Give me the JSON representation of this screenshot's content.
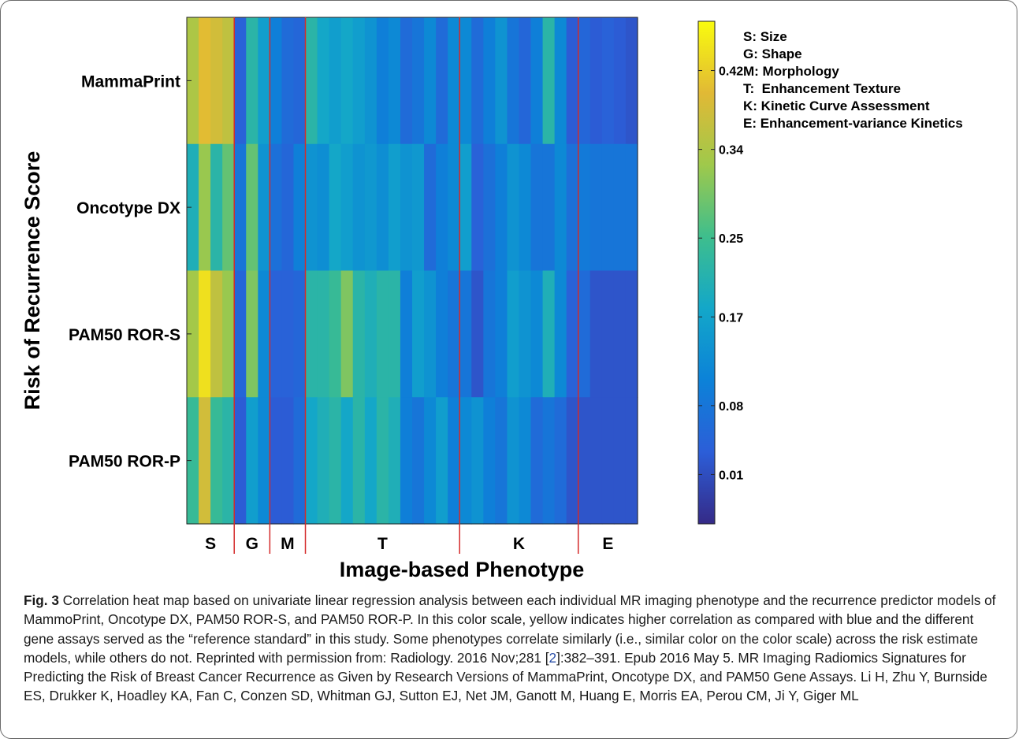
{
  "chart_data": {
    "type": "heatmap",
    "xlabel": "Image-based Phenotype",
    "ylabel": "Risk of Recurrence Score",
    "rows": [
      "MammaPrint",
      "Oncotype DX",
      "PAM50 ROR-S",
      "PAM50 ROR-P"
    ],
    "groups": [
      {
        "label": "S",
        "n": 4
      },
      {
        "label": "G",
        "n": 3
      },
      {
        "label": "M",
        "n": 3
      },
      {
        "label": "T",
        "n": 13
      },
      {
        "label": "K",
        "n": 10
      },
      {
        "label": "E",
        "n": 5
      }
    ],
    "values": [
      [
        0.34,
        0.4,
        0.38,
        0.36,
        0.04,
        0.22,
        0.16,
        0.1,
        0.06,
        0.05,
        0.22,
        0.18,
        0.16,
        0.18,
        0.16,
        0.14,
        0.1,
        0.12,
        0.06,
        0.08,
        0.12,
        0.06,
        0.12,
        0.12,
        0.06,
        0.1,
        0.14,
        0.08,
        0.05,
        0.1,
        0.22,
        0.12,
        0.03,
        0.05,
        0.03,
        0.04,
        0.03,
        0.02
      ],
      [
        0.2,
        0.32,
        0.22,
        0.28,
        0.08,
        0.28,
        0.14,
        0.07,
        0.05,
        0.1,
        0.14,
        0.13,
        0.18,
        0.16,
        0.14,
        0.15,
        0.13,
        0.16,
        0.14,
        0.15,
        0.06,
        0.1,
        0.12,
        0.16,
        0.04,
        0.07,
        0.1,
        0.14,
        0.12,
        0.08,
        0.08,
        0.12,
        0.07,
        0.09,
        0.08,
        0.08,
        0.08,
        0.08
      ],
      [
        0.33,
        0.44,
        0.36,
        0.32,
        0.05,
        0.3,
        0.12,
        0.04,
        0.04,
        0.05,
        0.22,
        0.22,
        0.24,
        0.3,
        0.22,
        0.2,
        0.22,
        0.22,
        0.1,
        0.16,
        0.14,
        0.1,
        0.08,
        0.08,
        0.02,
        0.08,
        0.1,
        0.16,
        0.14,
        0.12,
        0.2,
        0.12,
        0.04,
        0.06,
        0.02,
        0.02,
        0.02,
        0.02
      ],
      [
        0.24,
        0.38,
        0.24,
        0.22,
        0.03,
        0.16,
        0.12,
        0.03,
        0.03,
        0.06,
        0.18,
        0.2,
        0.22,
        0.18,
        0.22,
        0.18,
        0.22,
        0.2,
        0.1,
        0.08,
        0.12,
        0.16,
        0.1,
        0.12,
        0.14,
        0.1,
        0.08,
        0.14,
        0.12,
        0.06,
        0.08,
        0.06,
        0.02,
        0.02,
        0.02,
        0.02,
        0.02,
        0.02
      ]
    ],
    "colorbar_ticks": [
      0.01,
      0.08,
      0.17,
      0.25,
      0.34,
      0.42
    ],
    "colorbar_range": [
      -0.04,
      0.47
    ],
    "colormap": "parula",
    "colormap_stops": [
      "#352a87",
      "#2c5ed8",
      "#0c82d8",
      "#13a7c9",
      "#3ebe8d",
      "#9fc94b",
      "#e1b935",
      "#f9fb0e"
    ],
    "divider_color": "#d42a2a",
    "legend": [
      "S: Size",
      "G: Shape",
      "M: Morphology",
      "T:  Enhancement Texture",
      "K: Kinetic Curve Assessment",
      "E: Enhancement-variance Kinetics"
    ]
  },
  "caption": {
    "label": "Fig. 3",
    "text1": " Correlation heat map based on univariate linear regression analysis between each individual MR imaging phenotype and the recurrence predictor models of MammoPrint, Oncotype DX, PAM50 ROR-S, and PAM50 ROR-P. In this color scale, yellow indicates higher correlation as compared with blue and the different gene assays served as the “reference standard” in this study. Some phenotypes correlate similarly (i.e., similar color on the color scale) across the risk estimate models, while others do not. Reprinted with permission from: Radiology. 2016 Nov;281 [",
    "ref": "2",
    "text2": "]:382–391. Epub 2016 May 5. MR Imaging Radiomics Signatures for Predicting the Risk of Breast Cancer Recurrence as Given by Research Versions of MammaPrint, Oncotype DX, and PAM50 Gene Assays. Li H, Zhu Y, Burnside ES, Drukker K, Hoadley KA, Fan C, Conzen SD, Whitman GJ, Sutton EJ, Net JM, Ganott M, Huang E, Morris EA, Perou CM, Ji Y, Giger ML"
  }
}
